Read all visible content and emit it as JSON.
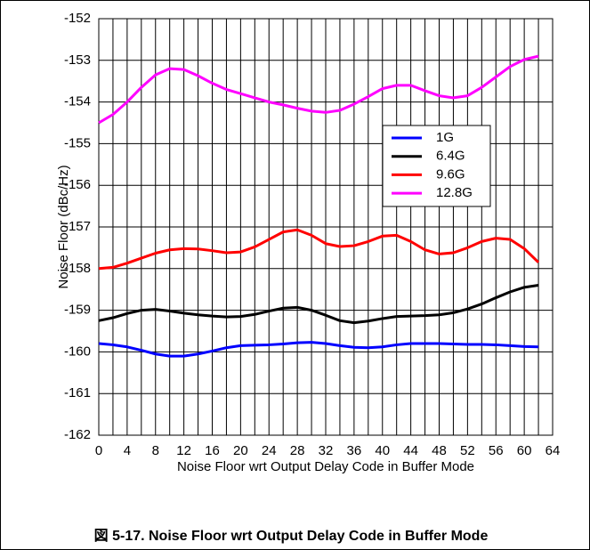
{
  "chart_data": {
    "type": "line",
    "caption": "図 5-17. Noise Floor wrt Output Delay Code in Buffer Mode",
    "xlabel": "Noise Floor wrt Output Delay Code in Buffer Mode",
    "ylabel": "Noise Floor (dBc/Hz)",
    "x": [
      0,
      2,
      4,
      6,
      8,
      10,
      12,
      14,
      16,
      18,
      20,
      22,
      24,
      26,
      28,
      30,
      32,
      34,
      36,
      38,
      40,
      42,
      44,
      46,
      48,
      50,
      52,
      54,
      56,
      58,
      60,
      62
    ],
    "series": [
      {
        "name": "1G",
        "color": "#0000ff",
        "values": [
          -159.8,
          -159.83,
          -159.88,
          -159.96,
          -160.05,
          -160.1,
          -160.1,
          -160.05,
          -159.98,
          -159.9,
          -159.85,
          -159.84,
          -159.83,
          -159.81,
          -159.78,
          -159.77,
          -159.8,
          -159.85,
          -159.89,
          -159.9,
          -159.88,
          -159.83,
          -159.8,
          -159.8,
          -159.8,
          -159.81,
          -159.82,
          -159.82,
          -159.83,
          -159.85,
          -159.87,
          -159.88
        ]
      },
      {
        "name": "6.4G",
        "color": "#000000",
        "values": [
          -159.25,
          -159.18,
          -159.08,
          -159.0,
          -158.98,
          -159.02,
          -159.07,
          -159.11,
          -159.14,
          -159.16,
          -159.15,
          -159.1,
          -159.02,
          -158.95,
          -158.93,
          -159.0,
          -159.12,
          -159.25,
          -159.3,
          -159.26,
          -159.2,
          -159.15,
          -159.14,
          -159.13,
          -159.11,
          -159.06,
          -158.97,
          -158.85,
          -158.7,
          -158.56,
          -158.45,
          -158.4
        ]
      },
      {
        "name": "9.6G",
        "color": "#ff0000",
        "values": [
          -158.0,
          -157.97,
          -157.87,
          -157.75,
          -157.63,
          -157.55,
          -157.52,
          -157.53,
          -157.57,
          -157.62,
          -157.6,
          -157.48,
          -157.3,
          -157.12,
          -157.07,
          -157.2,
          -157.4,
          -157.47,
          -157.45,
          -157.35,
          -157.22,
          -157.2,
          -157.35,
          -157.55,
          -157.65,
          -157.62,
          -157.5,
          -157.35,
          -157.27,
          -157.3,
          -157.52,
          -157.85
        ]
      },
      {
        "name": "12.8G",
        "color": "#ff00ff",
        "values": [
          -154.5,
          -154.3,
          -154.0,
          -153.65,
          -153.35,
          -153.2,
          -153.22,
          -153.37,
          -153.55,
          -153.7,
          -153.8,
          -153.9,
          -154.0,
          -154.07,
          -154.15,
          -154.22,
          -154.25,
          -154.2,
          -154.05,
          -153.87,
          -153.68,
          -153.6,
          -153.6,
          -153.73,
          -153.85,
          -153.9,
          -153.85,
          -153.65,
          -153.4,
          -153.15,
          -152.98,
          -152.9
        ]
      }
    ],
    "xlim": [
      0,
      64
    ],
    "xticks": [
      0,
      4,
      8,
      12,
      16,
      20,
      24,
      28,
      32,
      36,
      40,
      44,
      48,
      52,
      56,
      60,
      64
    ],
    "xminorticks": [
      2,
      6,
      10,
      14,
      18,
      22,
      26,
      30,
      34,
      38,
      42,
      46,
      50,
      54,
      58,
      62
    ],
    "ylim": [
      -162,
      -152
    ],
    "yticks": [
      -162,
      -161,
      -160,
      -159,
      -158,
      -157,
      -156,
      -155,
      -154,
      -153,
      -152
    ],
    "grid": true
  }
}
